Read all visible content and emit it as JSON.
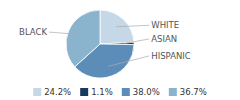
{
  "chart_data": {
    "type": "pie",
    "categories": [
      "WHITE",
      "ASIAN",
      "HISPANIC",
      "BLACK"
    ],
    "values": [
      24.2,
      1.1,
      38.0,
      36.7
    ],
    "value_labels": [
      "24.2%",
      "1.1%",
      "38.0%",
      "36.7%"
    ],
    "colors": [
      "#c5d8e8",
      "#1a3a5c",
      "#5b8db8",
      "#8ab4ce"
    ],
    "legend": "bottom"
  }
}
